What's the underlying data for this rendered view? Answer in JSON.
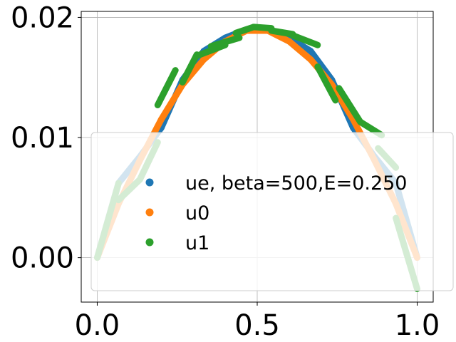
{
  "chart_data": {
    "type": "line",
    "title": "",
    "xlabel": "",
    "ylabel": "",
    "xlim": [
      -0.05,
      1.05
    ],
    "ylim": [
      -0.0037,
      0.0205
    ],
    "grid": true,
    "legend_placement": "lower-center",
    "x_ticks": [
      {
        "value": 0.0,
        "label": "0.0"
      },
      {
        "value": 0.5,
        "label": "0.5"
      },
      {
        "value": 1.0,
        "label": "1.0"
      }
    ],
    "y_ticks": [
      {
        "value": 0.0,
        "label": "0.00"
      },
      {
        "value": 0.01,
        "label": "0.01"
      },
      {
        "value": 0.02,
        "label": "0.02"
      }
    ],
    "series": [
      {
        "name": "ue, beta=500,E=0.250",
        "color": "#1f77b4",
        "segments": [
          [
            [
              0.0,
              0.0
            ],
            [
              0.0667,
              0.0062
            ]
          ],
          [
            [
              0.0667,
              0.0062
            ],
            [
              0.1333,
              0.0084
            ]
          ],
          [
            [
              0.1333,
              0.0084
            ],
            [
              0.2,
              0.0108
            ]
          ],
          [
            [
              0.2,
              0.0108
            ],
            [
              0.2667,
              0.0148
            ]
          ],
          [
            [
              0.2667,
              0.0148
            ],
            [
              0.3333,
              0.0172
            ]
          ],
          [
            [
              0.3333,
              0.0172
            ],
            [
              0.4,
              0.0183
            ]
          ],
          [
            [
              0.4,
              0.0183
            ],
            [
              0.4667,
              0.019
            ]
          ],
          [
            [
              0.4667,
              0.019
            ],
            [
              0.5333,
              0.019
            ]
          ],
          [
            [
              0.5333,
              0.019
            ],
            [
              0.6,
              0.0183
            ]
          ],
          [
            [
              0.6,
              0.0183
            ],
            [
              0.6667,
              0.0172
            ]
          ],
          [
            [
              0.6667,
              0.0172
            ],
            [
              0.7333,
              0.0148
            ]
          ],
          [
            [
              0.7333,
              0.0148
            ],
            [
              0.8,
              0.0108
            ]
          ],
          [
            [
              0.8,
              0.0108
            ],
            [
              0.8667,
              0.0084
            ]
          ],
          [
            [
              0.8667,
              0.0084
            ],
            [
              0.9333,
              0.0062
            ]
          ],
          [
            [
              0.9333,
              0.0062
            ],
            [
              1.0,
              0.0
            ]
          ]
        ]
      },
      {
        "name": "u0",
        "color": "#ff7f0e",
        "segments": [
          [
            [
              0.0,
              0.0
            ],
            [
              0.0667,
              0.0045
            ]
          ],
          [
            [
              0.0667,
              0.0045
            ],
            [
              0.1333,
              0.0081
            ]
          ],
          [
            [
              0.1333,
              0.0081
            ],
            [
              0.2,
              0.0115
            ]
          ],
          [
            [
              0.2,
              0.0115
            ],
            [
              0.2667,
              0.0144
            ]
          ],
          [
            [
              0.2667,
              0.0144
            ],
            [
              0.3333,
              0.0165
            ]
          ],
          [
            [
              0.3333,
              0.0165
            ],
            [
              0.4,
              0.018
            ]
          ],
          [
            [
              0.4,
              0.018
            ],
            [
              0.4667,
              0.0189
            ]
          ],
          [
            [
              0.4667,
              0.0189
            ],
            [
              0.5333,
              0.0189
            ]
          ],
          [
            [
              0.5333,
              0.0189
            ],
            [
              0.6,
              0.018
            ]
          ],
          [
            [
              0.6,
              0.018
            ],
            [
              0.6667,
              0.0165
            ]
          ],
          [
            [
              0.6667,
              0.0165
            ],
            [
              0.7333,
              0.0144
            ]
          ],
          [
            [
              0.7333,
              0.0144
            ],
            [
              0.8,
              0.0115
            ]
          ],
          [
            [
              0.8,
              0.0115
            ],
            [
              0.8667,
              0.0081
            ]
          ],
          [
            [
              0.8667,
              0.0081
            ],
            [
              0.9333,
              0.0045
            ]
          ],
          [
            [
              0.9333,
              0.0045
            ],
            [
              1.0,
              0.0
            ]
          ]
        ]
      },
      {
        "name": "u1",
        "color": "#2ca02c",
        "segments": [
          [
            [
              0.0,
              0.0
            ],
            [
              0.0667,
              0.0062
            ]
          ],
          [
            [
              0.0667,
              0.0048
            ],
            [
              0.1333,
              0.0065
            ]
          ],
          [
            [
              0.1333,
              0.0065
            ],
            [
              0.1889,
              0.0096
            ]
          ],
          [
            [
              0.1889,
              0.0127
            ],
            [
              0.2444,
              0.0156
            ]
          ],
          [
            [
              0.2667,
              0.0146
            ],
            [
              0.3111,
              0.0169
            ]
          ],
          [
            [
              0.3111,
              0.0168
            ],
            [
              0.4,
              0.0177
            ]
          ],
          [
            [
              0.3556,
              0.0176
            ],
            [
              0.4444,
              0.0183
            ]
          ],
          [
            [
              0.4333,
              0.0187
            ],
            [
              0.4889,
              0.0192
            ]
          ],
          [
            [
              0.4889,
              0.0192
            ],
            [
              0.5444,
              0.0191
            ]
          ],
          [
            [
              0.5444,
              0.0189
            ],
            [
              0.6111,
              0.0186
            ]
          ],
          [
            [
              0.6111,
              0.0185
            ],
            [
              0.6889,
              0.0177
            ]
          ],
          [
            [
              0.6889,
              0.0159
            ],
            [
              0.7444,
              0.0131
            ]
          ],
          [
            [
              0.7556,
              0.0141
            ],
            [
              0.8222,
              0.0113
            ]
          ],
          [
            [
              0.8222,
              0.0113
            ],
            [
              0.8889,
              0.0102
            ]
          ],
          [
            [
              0.8778,
              0.0091
            ],
            [
              0.9333,
              0.0075
            ]
          ],
          [
            [
              0.9333,
              0.0033
            ],
            [
              1.0,
              -0.0026
            ]
          ]
        ]
      }
    ]
  }
}
